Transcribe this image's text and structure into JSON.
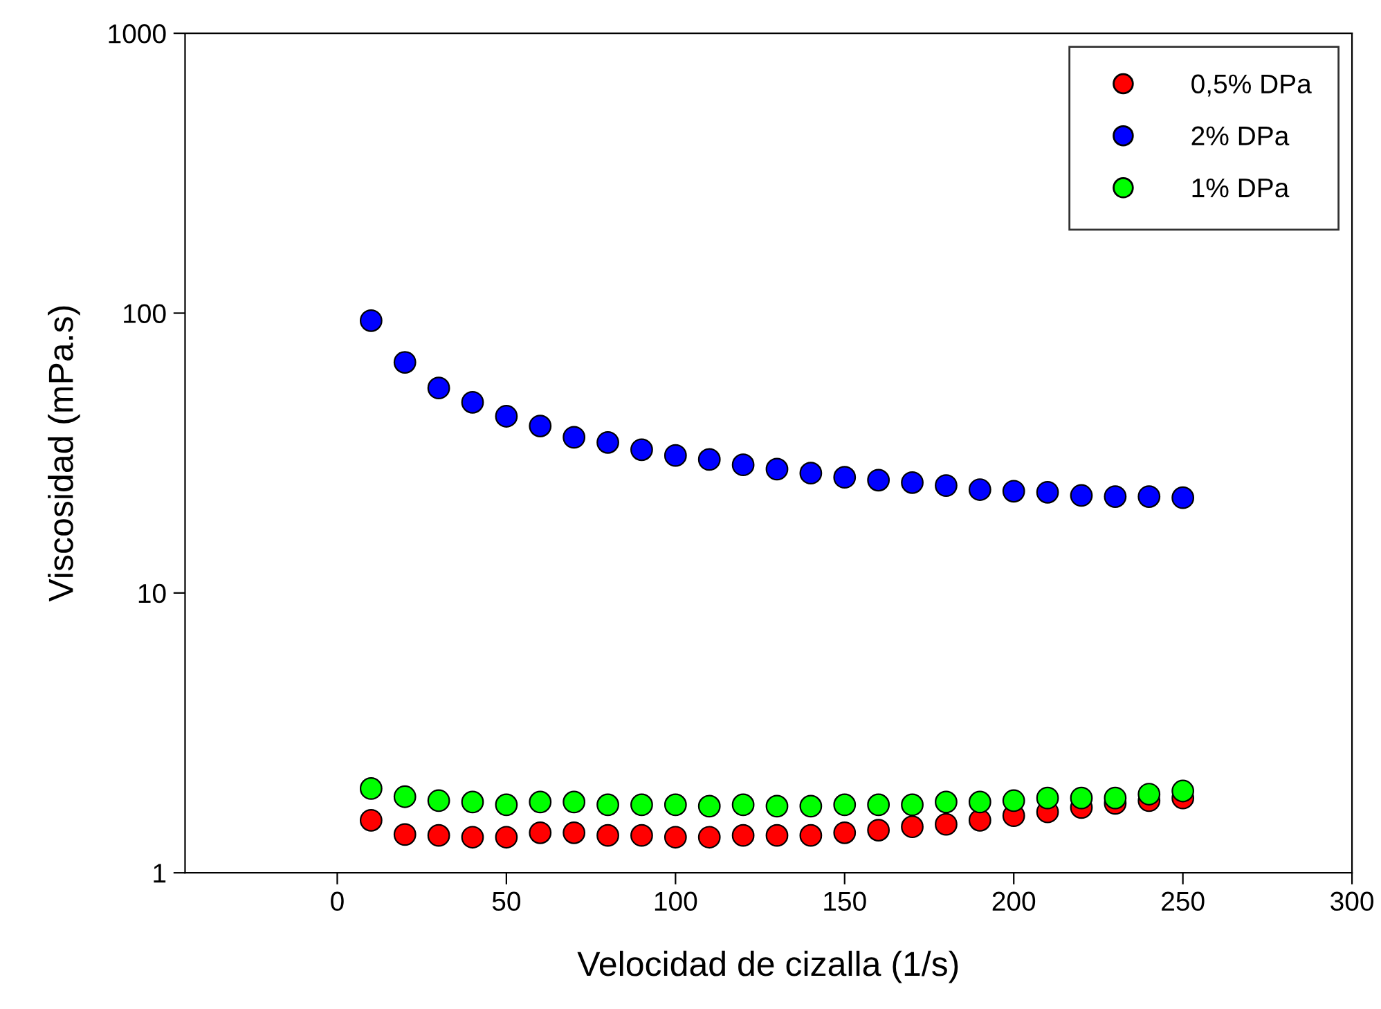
{
  "chart_data": {
    "type": "scatter",
    "xlabel": "Velocidad de cizalla (1/s)",
    "ylabel": "Viscosidad (mPa.s)",
    "x": [
      10,
      20,
      30,
      40,
      50,
      60,
      70,
      80,
      90,
      100,
      110,
      120,
      130,
      140,
      150,
      160,
      170,
      180,
      190,
      200,
      210,
      220,
      230,
      240,
      250
    ],
    "series": [
      {
        "name": "0,5% DPa",
        "color": "#ff0000",
        "values": [
          1.54,
          1.37,
          1.36,
          1.34,
          1.34,
          1.39,
          1.39,
          1.36,
          1.36,
          1.34,
          1.34,
          1.36,
          1.36,
          1.36,
          1.39,
          1.42,
          1.46,
          1.49,
          1.54,
          1.6,
          1.65,
          1.71,
          1.77,
          1.81,
          1.85
        ]
      },
      {
        "name": "2% DPa",
        "color": "#0000ff",
        "values": [
          94,
          66.7,
          54,
          48,
          42.8,
          39.5,
          36,
          34.5,
          32.5,
          31,
          30,
          28.7,
          27.7,
          26.8,
          25.9,
          25.3,
          24.8,
          24.2,
          23.4,
          23.1,
          22.9,
          22.3,
          22.1,
          22.1,
          21.9
        ]
      },
      {
        "name": "1% DPa",
        "color": "#00ff00",
        "values": [
          2.0,
          1.87,
          1.81,
          1.79,
          1.75,
          1.79,
          1.79,
          1.75,
          1.75,
          1.75,
          1.73,
          1.75,
          1.73,
          1.73,
          1.75,
          1.75,
          1.75,
          1.79,
          1.79,
          1.81,
          1.85,
          1.85,
          1.85,
          1.91,
          1.96
        ]
      }
    ],
    "log": "y",
    "xlim": [
      -45,
      300
    ],
    "xticks": [
      0,
      50,
      100,
      150,
      200,
      250,
      300
    ],
    "ylim": [
      1,
      1000
    ],
    "yticks": [
      1,
      10,
      100,
      1000
    ],
    "marker": "circle",
    "legend": "top right",
    "grid": false
  }
}
